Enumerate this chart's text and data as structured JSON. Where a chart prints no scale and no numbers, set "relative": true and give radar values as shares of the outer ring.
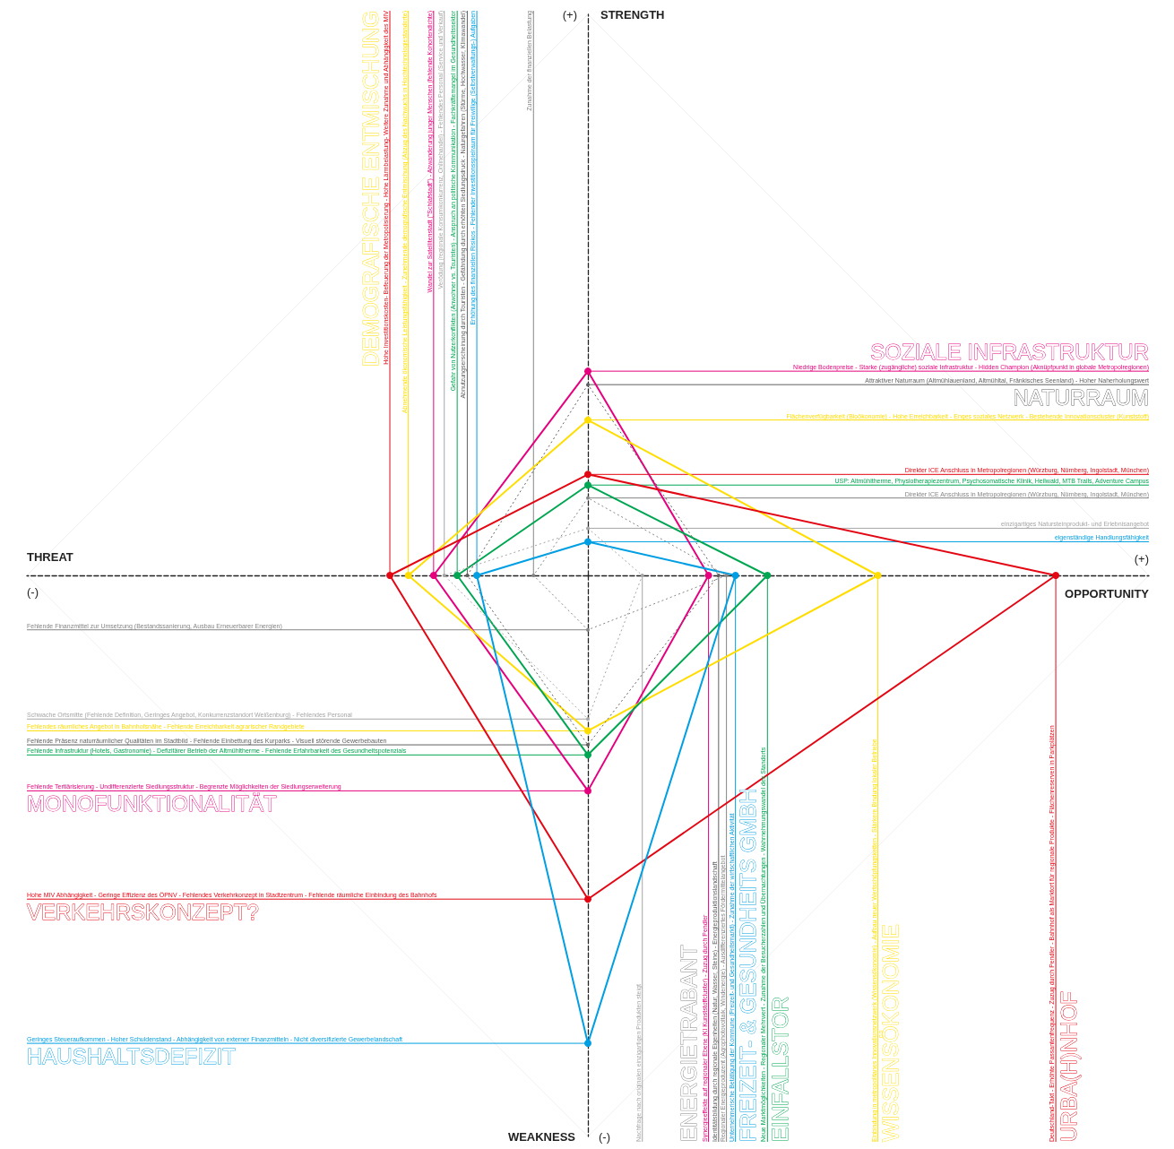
{
  "chart_data": {
    "type": "radar",
    "relative": true,
    "marker": "circle",
    "line_style": "solid",
    "categories": [
      "STRENGTH",
      "OPPORTUNITY",
      "WEAKNESS",
      "THREAT"
    ],
    "series": [
      {
        "color": "#e6007e",
        "values": [
          0.364,
          0.215,
          0.384,
          0.275
        ]
      },
      {
        "color": "#ffdd00",
        "values": [
          0.277,
          0.517,
          0.277,
          0.32
        ]
      },
      {
        "color": "#e30613",
        "values": [
          0.18,
          0.834,
          0.577,
          0.353
        ]
      },
      {
        "color": "#00a651",
        "values": [
          0.161,
          0.32,
          0.32,
          0.233
        ]
      },
      {
        "color": "#009fe3",
        "values": [
          0.06,
          0.263,
          0.834,
          0.198
        ]
      },
      {
        "color": "#5f5f5f",
        "line_style": "dotted",
        "values": [
          0.34,
          0.233,
          0.302,
          0.215
        ]
      },
      {
        "color": "#858585",
        "line_style": "dotted",
        "values": [
          0.138,
          0.247,
          0.097,
          0.097
        ]
      },
      {
        "color": "#a6a6a6",
        "line_style": "dotted",
        "values": [
          0.084,
          0.097,
          0.256,
          0.256
        ]
      }
    ],
    "annotations": [
      "(+)",
      "(+)",
      "(-)",
      "(-)",
      "Niedrige Bodenpreise - Starke (zugängliche) soziale Infrastruktur - Hidden Champion (Aknüpfpunkt in globale Metropolregionen)",
      "SOZIALE INFRASTRUKTUR",
      "Synergieeffekte auf regionaler Ebene (KI Kunststoffcluster) - Zuzug durch Pendler",
      "Fehlende Tertiärisierung - Undifferenzierte Siedlungsstruktur - Begrenzte Möglichkeiten der Siedlungserweiterung",
      "MONOFUNKTIONALITÄT",
      "Wandel zur Satellitenstadt (\"Schlafstadt\") - Abwanderung junger Menschen (fehlende Kohortendichte)",
      "Flächenverfügbarkeit (Bioökonomie) - Hohe Erreichbarkeit - Enges soziales Netzwerk - Bestehende Innovationscluster (Kunststoff)",
      "Einbindung in metropolitanes Innovationsnetzwerk (Wissensökonomie) - Aufbau neuer Wertschöpfungsketten - Stärkere Bindung lokaler Betriebe",
      "WISSENSÖKONOMIE",
      "Fehlendes räumliches Angebot in Bahnhofsnähe - Fehlende Erreichbarkeit agrarischer Randgebiete",
      "Abnehmende ökonomische Leistungsfähigkeit - Zunehmende demografische Entmischung (Abzug des Nachwuchs in Hochtechnologiestandorte)",
      "DEMOGRAFISCHE ENTMISCHUNG",
      "Direkter ICE Anschluss in Metropolregionen (Würzburg, Nürnberg, Ingolstadt, München)",
      "Deutschland-Takt - Erhöhte Passantenfrequenz - Zuzug durch Pendler - Bahnhof als Marktort für regionale Produkte - Flächenreserven in Parkplätzen",
      "URBA(H)NHOF",
      "Hohe MIV Abhängigkeit - Geringe Effizienz des ÖPNV - Fehlendes Verkehrkonzept in Stadtzentrum - Fehlende räumliche Einbindung des Bahnhofs",
      "VERKEHRSKONZEPT?",
      "Hohe Investitionskosten- Befeuerung der Metropolisierung - Hohe Lärmbelastung- Weitere Zunahme und Abhängigkeit des MIV",
      "USP: Altmühltherme, Physiotherapiezentrum, Psychosomatische Klinik, Heilwald, MTB Trails, Adventure Campus",
      "Neue Marktmöglichkeiten - Regionaler Mehrwert - Zunahme der Besucherzahlen und Übernachtungen - Wahrnehmungswandel des Standorts",
      "EINFALLSTOR",
      "Fehlende Infrastruktur (Hotels, Gastronomie) - Defizitärer Betrieb der Altmühltherme - Fehlende Erfahrbarkeit des Gesundheitspotenzials",
      "Gefahr von Nutzerkonflikten (Anwohner vs. Touristen) - Anspruch an politische Kommunikation - Fachkräftemangel im Gesundheitssektor",
      "eigenständige Handlungsfähigkeit",
      "Unternehmerische Betätigung der Kommune (Freizeit- und Gesundheitsmarkt) - Zunahme der wirtschaftlichen Aktivität",
      "FREIZEIT- & GESUNDHEITS GMBH",
      "Geringes Steueraufkommen - Hoher Schuldenstand - Abhängigkeit von externer Finanzmitteln - Nicht diversifizierte Gewerbelandschaft",
      "HAUSHALTSDEFIZIT",
      "Erhöhung des finanziellen Risikos - Fehlender Investitionsspielraum für Freiwillige (Selbstverwaltungs-) Aufgaben",
      "Attraktiver Naturraum (Altmühlauenland, Altmühltal, Fränkisches Seenland) - Hoher Naherholungswert",
      "NATURRAUM",
      "Identitätsbildung durch regionale Eigenheiten (Natur, Wasser, Steine) - Energieproduktionslandschaft",
      "Fehlende Präsenz naturräumlicher Qualitäten im Stadtbild - Fehlende Einbettung des Kurparks - Visuell störende Gewerbebauten",
      "Abnutzungserscheinung durch Touristen - Gefährdung durch erhöhten Siedlungsdruck - Naturgefahren (Stürme, Hochwasser, Klimawandel)",
      "Direkter ICE Anschluss in Metropolregionen (Würzburg, Nürnberg, Ingolstadt, München)",
      "Regionaler Energieproduzent (Agrophotovoltaik, Windenergie) - Ausdifferenziertes Fördermittelangebot",
      "ENERGIETRABANT",
      "Fehlende Finanzmittel zur Umsetzung (Bestandssanierung, Ausbau Erneuerbarer Energien)",
      "Zunahme der finanziellen Belastung",
      "einzigartiges Natursteinprodukt- und Erlebnisangebot",
      "Nachfrage nach originalen einzigartigen Produkten steigt",
      "Schwache Ortsmitte (Fehlende Definition, Geringes Angebot, Konkurrenzstandort Weißenburg) - Fehlendes Personal",
      "Verödung (regionale Konsumkonkurrenz, Onlinehandel) - Fehlendes Personal (Service und Verkauf)"
    ]
  }
}
